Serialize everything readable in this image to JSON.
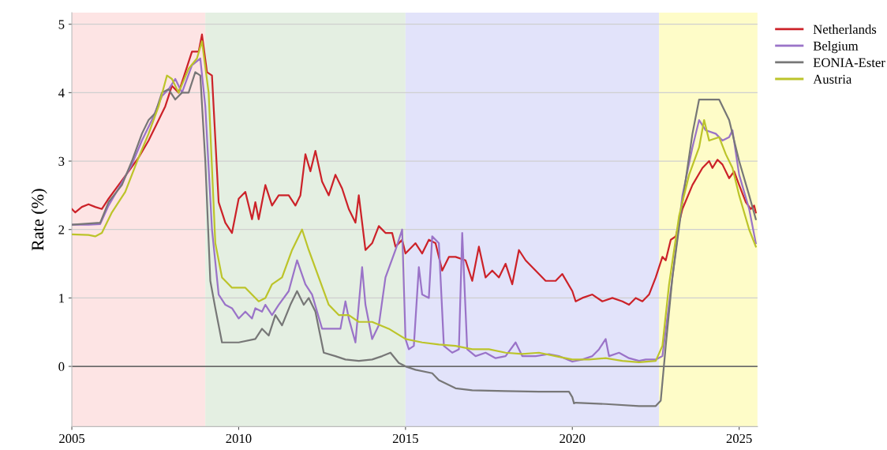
{
  "chart_data": {
    "type": "line",
    "ylabel": "Rate (%)",
    "xlim": [
      2005,
      2025.55
    ],
    "xticks": [
      2005,
      2010,
      2015,
      2020,
      2025
    ],
    "ylim": [
      -0.88,
      5.17
    ],
    "yticks": [
      0,
      1,
      2,
      3,
      4,
      5
    ],
    "grid": "y",
    "legend": "top right",
    "line_style": "solid",
    "marker": "none",
    "bands": [
      {
        "axis": "x",
        "from": 2005,
        "to": 2009,
        "color": "#fde4e4"
      },
      {
        "axis": "x",
        "from": 2009,
        "to": 2015,
        "color": "#e4efe2"
      },
      {
        "axis": "x",
        "from": 2015,
        "to": 2022.6,
        "color": "#e2e3fa"
      },
      {
        "axis": "x",
        "from": 2022.6,
        "to": 2025.55,
        "color": "#fefcc8"
      }
    ],
    "ref_lines": [
      {
        "axis": "y",
        "value": 0,
        "color": "#444444"
      }
    ],
    "series": [
      {
        "name": "Netherlands",
        "color": "#cc2229",
        "x": [
          2005.0,
          2005.1,
          2005.3,
          2005.5,
          2005.7,
          2005.9,
          2006.1,
          2006.4,
          2006.7,
          2007.0,
          2007.3,
          2007.5,
          2007.8,
          2008.0,
          2008.2,
          2008.4,
          2008.6,
          2008.8,
          2008.9,
          2009.05,
          2009.2,
          2009.4,
          2009.6,
          2009.8,
          2010.0,
          2010.2,
          2010.4,
          2010.5,
          2010.6,
          2010.8,
          2011.0,
          2011.2,
          2011.5,
          2011.7,
          2011.85,
          2012.0,
          2012.15,
          2012.3,
          2012.5,
          2012.7,
          2012.9,
          2013.1,
          2013.3,
          2013.5,
          2013.6,
          2013.8,
          2014.0,
          2014.2,
          2014.4,
          2014.6,
          2014.7,
          2014.9,
          2015.0,
          2015.3,
          2015.5,
          2015.7,
          2015.9,
          2016.1,
          2016.3,
          2016.5,
          2016.8,
          2017.0,
          2017.2,
          2017.4,
          2017.6,
          2017.8,
          2018.0,
          2018.2,
          2018.4,
          2018.6,
          2018.9,
          2019.2,
          2019.5,
          2019.7,
          2020.0,
          2020.1,
          2020.3,
          2020.6,
          2020.9,
          2021.2,
          2021.5,
          2021.7,
          2021.9,
          2022.1,
          2022.3,
          2022.5,
          2022.7,
          2022.8,
          2022.95,
          2023.1,
          2023.3,
          2023.6,
          2023.9,
          2024.1,
          2024.2,
          2024.35,
          2024.5,
          2024.7,
          2024.85,
          2025.0,
          2025.2,
          2025.35,
          2025.45,
          2025.5
        ],
        "values": [
          2.3,
          2.25,
          2.33,
          2.37,
          2.33,
          2.3,
          2.45,
          2.65,
          2.85,
          3.05,
          3.3,
          3.5,
          3.8,
          4.1,
          4.0,
          4.3,
          4.6,
          4.6,
          4.85,
          4.3,
          4.25,
          2.4,
          2.1,
          1.95,
          2.45,
          2.55,
          2.15,
          2.4,
          2.15,
          2.65,
          2.35,
          2.5,
          2.5,
          2.35,
          2.5,
          3.1,
          2.85,
          3.15,
          2.7,
          2.5,
          2.8,
          2.6,
          2.3,
          2.1,
          2.5,
          1.7,
          1.8,
          2.05,
          1.95,
          1.95,
          1.75,
          1.85,
          1.65,
          1.8,
          1.65,
          1.85,
          1.8,
          1.4,
          1.6,
          1.6,
          1.55,
          1.25,
          1.75,
          1.3,
          1.4,
          1.3,
          1.5,
          1.2,
          1.7,
          1.55,
          1.4,
          1.25,
          1.25,
          1.35,
          1.1,
          0.95,
          1.0,
          1.05,
          0.95,
          1.0,
          0.95,
          0.9,
          1.0,
          0.95,
          1.05,
          1.3,
          1.6,
          1.55,
          1.85,
          1.9,
          2.3,
          2.65,
          2.9,
          3.0,
          2.9,
          3.02,
          2.95,
          2.75,
          2.85,
          2.65,
          2.4,
          2.3,
          2.35,
          2.25
        ]
      },
      {
        "name": "Belgium",
        "color": "#9a73c8",
        "x": [
          2005.0,
          2005.5,
          2005.85,
          2006.1,
          2006.4,
          2006.8,
          2007.1,
          2007.4,
          2007.7,
          2007.9,
          2008.1,
          2008.3,
          2008.6,
          2008.85,
          2009.0,
          2009.2,
          2009.4,
          2009.6,
          2009.8,
          2010.0,
          2010.2,
          2010.4,
          2010.5,
          2010.7,
          2010.8,
          2011.0,
          2011.2,
          2011.5,
          2011.75,
          2012.0,
          2012.2,
          2012.5,
          2012.8,
          2013.05,
          2013.2,
          2013.3,
          2013.5,
          2013.7,
          2013.8,
          2014.0,
          2014.2,
          2014.4,
          2014.7,
          2014.9,
          2015.0,
          2015.1,
          2015.25,
          2015.4,
          2015.5,
          2015.7,
          2015.8,
          2016.0,
          2016.15,
          2016.4,
          2016.6,
          2016.7,
          2016.85,
          2017.1,
          2017.4,
          2017.7,
          2018.0,
          2018.3,
          2018.5,
          2018.9,
          2019.3,
          2019.6,
          2020.0,
          2020.3,
          2020.6,
          2020.8,
          2021.0,
          2021.1,
          2021.4,
          2021.7,
          2022.0,
          2022.2,
          2022.5,
          2022.7,
          2023.0,
          2023.3,
          2023.6,
          2023.8,
          2024.0,
          2024.3,
          2024.5,
          2024.7,
          2024.8,
          2025.0,
          2025.3,
          2025.5
        ],
        "values": [
          2.07,
          2.07,
          2.08,
          2.35,
          2.6,
          2.95,
          3.3,
          3.6,
          3.95,
          4.05,
          4.2,
          4.0,
          4.4,
          4.5,
          3.8,
          2.0,
          1.05,
          0.9,
          0.85,
          0.7,
          0.8,
          0.7,
          0.85,
          0.8,
          0.9,
          0.75,
          0.9,
          1.1,
          1.55,
          1.2,
          1.05,
          0.55,
          0.55,
          0.55,
          0.95,
          0.7,
          0.35,
          1.45,
          0.9,
          0.4,
          0.6,
          1.3,
          1.7,
          2.0,
          0.4,
          0.25,
          0.3,
          1.45,
          1.05,
          1.0,
          1.9,
          1.8,
          0.3,
          0.2,
          0.25,
          1.95,
          0.25,
          0.15,
          0.2,
          0.12,
          0.15,
          0.35,
          0.15,
          0.15,
          0.18,
          0.15,
          0.07,
          0.1,
          0.15,
          0.25,
          0.4,
          0.15,
          0.2,
          0.12,
          0.08,
          0.1,
          0.1,
          0.15,
          1.3,
          2.5,
          3.2,
          3.6,
          3.45,
          3.4,
          3.3,
          3.35,
          3.45,
          2.8,
          2.3,
          1.8
        ]
      },
      {
        "name": "EONIA-Ester",
        "color": "#777777",
        "x": [
          2005.0,
          2005.85,
          2006.1,
          2006.5,
          2006.8,
          2007.1,
          2007.3,
          2007.5,
          2007.7,
          2007.9,
          2008.1,
          2008.3,
          2008.5,
          2008.7,
          2008.85,
          2009.0,
          2009.15,
          2009.3,
          2009.5,
          2010.0,
          2010.5,
          2010.7,
          2010.9,
          2011.1,
          2011.3,
          2011.55,
          2011.75,
          2011.95,
          2012.1,
          2012.3,
          2012.55,
          2012.9,
          2013.2,
          2013.6,
          2014.0,
          2014.3,
          2014.55,
          2014.8,
          2015.0,
          2015.3,
          2015.8,
          2016.0,
          2016.5,
          2017.0,
          2018.0,
          2019.0,
          2019.9,
          2020.0,
          2020.05,
          2020.1,
          2021.0,
          2022.0,
          2022.5,
          2022.65,
          2022.8,
          2023.0,
          2023.3,
          2023.6,
          2023.8,
          2024.4,
          2024.7,
          2025.0,
          2025.3,
          2025.5
        ],
        "values": [
          2.07,
          2.1,
          2.4,
          2.65,
          3.0,
          3.4,
          3.6,
          3.7,
          4.0,
          4.05,
          3.9,
          4.0,
          4.0,
          4.3,
          4.25,
          3.0,
          1.25,
          0.85,
          0.35,
          0.35,
          0.4,
          0.55,
          0.45,
          0.75,
          0.6,
          0.9,
          1.1,
          0.9,
          1.0,
          0.8,
          0.2,
          0.15,
          0.1,
          0.08,
          0.1,
          0.15,
          0.2,
          0.05,
          0.0,
          -0.05,
          -0.1,
          -0.2,
          -0.32,
          -0.35,
          -0.36,
          -0.37,
          -0.37,
          -0.45,
          -0.54,
          -0.53,
          -0.55,
          -0.58,
          -0.58,
          -0.5,
          0.3,
          1.3,
          2.4,
          3.4,
          3.9,
          3.9,
          3.6,
          3.0,
          2.5,
          2.15
        ]
      },
      {
        "name": "Austria",
        "color": "#bcc42a",
        "x": [
          2005.0,
          2005.5,
          2005.7,
          2005.9,
          2006.2,
          2006.6,
          2007.0,
          2007.3,
          2007.6,
          2007.85,
          2008.0,
          2008.2,
          2008.5,
          2008.75,
          2008.9,
          2009.1,
          2009.3,
          2009.5,
          2009.8,
          2010.2,
          2010.6,
          2010.8,
          2011.0,
          2011.3,
          2011.6,
          2011.9,
          2012.1,
          2012.4,
          2012.7,
          2013.0,
          2013.3,
          2013.6,
          2014.0,
          2014.5,
          2015.0,
          2015.5,
          2016.0,
          2016.5,
          2017.0,
          2017.5,
          2018.0,
          2018.5,
          2019.0,
          2019.5,
          2020.0,
          2020.5,
          2021.0,
          2021.5,
          2022.0,
          2022.5,
          2022.7,
          2022.9,
          2023.2,
          2023.5,
          2023.8,
          2023.95,
          2024.1,
          2024.4,
          2024.6,
          2024.8,
          2025.0,
          2025.3,
          2025.5
        ],
        "values": [
          1.93,
          1.92,
          1.9,
          1.95,
          2.25,
          2.55,
          3.05,
          3.4,
          3.8,
          4.25,
          4.2,
          4.0,
          4.35,
          4.5,
          4.75,
          4.0,
          1.8,
          1.3,
          1.15,
          1.15,
          0.95,
          1.0,
          1.2,
          1.3,
          1.7,
          2.0,
          1.7,
          1.3,
          0.9,
          0.75,
          0.75,
          0.65,
          0.65,
          0.55,
          0.4,
          0.35,
          0.32,
          0.3,
          0.25,
          0.25,
          0.2,
          0.18,
          0.2,
          0.15,
          0.1,
          0.1,
          0.12,
          0.08,
          0.06,
          0.08,
          0.3,
          1.2,
          2.2,
          2.8,
          3.2,
          3.6,
          3.3,
          3.35,
          3.1,
          2.9,
          2.5,
          2.0,
          1.75
        ]
      }
    ]
  }
}
